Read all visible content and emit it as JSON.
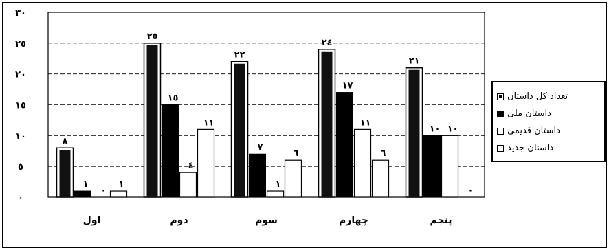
{
  "chart_data": {
    "type": "bar",
    "categories": [
      "اول",
      "دوم",
      "سوم",
      "چهارم",
      "پنجم"
    ],
    "series": [
      {
        "name": "تعداد کل داستان",
        "values": [
          8,
          25,
          22,
          24,
          21
        ],
        "color": "#000000",
        "style": "total"
      },
      {
        "name": "داستان ملی",
        "values": [
          1,
          15,
          7,
          17,
          10
        ],
        "color": "#000000",
        "style": "solid"
      },
      {
        "name": "داستان قدیمی",
        "values": [
          0,
          4,
          1,
          11,
          10
        ],
        "color": "#ffffff",
        "style": "outline"
      },
      {
        "name": "داستان جدید",
        "values": [
          1,
          11,
          6,
          6,
          0
        ],
        "color": "#ffffff",
        "style": "outline"
      }
    ],
    "data_labels": [
      [
        "٨",
        "١",
        "٠",
        "١"
      ],
      [
        "٢٥",
        "١٥",
        "٤",
        "١١"
      ],
      [
        "٢٢",
        "٧",
        "١",
        "٦"
      ],
      [
        "٢٤",
        "١٧",
        "١١",
        "٦"
      ],
      [
        "٢١",
        "١٠",
        "١٠",
        "٠"
      ]
    ],
    "y_ticks": [
      "٠",
      "٥",
      "١٠",
      "١٥",
      "٢٠",
      "٢٥",
      "٣٠"
    ],
    "ylim": [
      0,
      30
    ],
    "grid": true,
    "legend_position": "right"
  }
}
